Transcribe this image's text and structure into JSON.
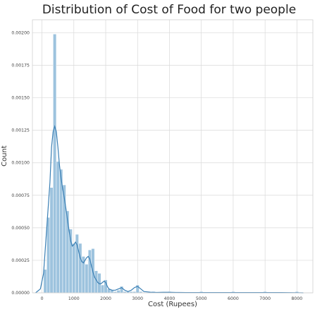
{
  "chart_data": {
    "type": "bar",
    "title": "Distribution of Cost of Food for two people",
    "xlabel": "Cost (Rupees)",
    "ylabel": "Count",
    "xlim": [
      -300,
      8500
    ],
    "ylim": [
      0,
      0.0021
    ],
    "x_ticks": [
      0,
      1000,
      2000,
      3000,
      4000,
      5000,
      6000,
      7000,
      8000
    ],
    "y_ticks": [
      0,
      0.00025,
      0.0005,
      0.00075,
      0.001,
      0.00125,
      0.0015,
      0.00175,
      0.002
    ],
    "x_tick_labels": [
      "0",
      "1000",
      "2000",
      "3000",
      "4000",
      "5000",
      "6000",
      "7000",
      "8000"
    ],
    "y_tick_labels": [
      "0.00000",
      "0.00025",
      "0.00050",
      "0.00075",
      "0.00100",
      "0.00125",
      "0.00150",
      "0.00175",
      "0.00200"
    ],
    "grid": true,
    "bin_width": 100,
    "bins": [
      {
        "x0": 50,
        "value": 0.00018
      },
      {
        "x0": 150,
        "value": 0.00058
      },
      {
        "x0": 250,
        "value": 0.00081
      },
      {
        "x0": 350,
        "value": 0.00199
      },
      {
        "x0": 450,
        "value": 0.00101
      },
      {
        "x0": 550,
        "value": 0.00095
      },
      {
        "x0": 650,
        "value": 0.00083
      },
      {
        "x0": 750,
        "value": 0.00063
      },
      {
        "x0": 850,
        "value": 0.00049
      },
      {
        "x0": 950,
        "value": 0.00038
      },
      {
        "x0": 1050,
        "value": 0.00045
      },
      {
        "x0": 1150,
        "value": 0.00038
      },
      {
        "x0": 1250,
        "value": 0.00028
      },
      {
        "x0": 1350,
        "value": 0.00022
      },
      {
        "x0": 1450,
        "value": 0.00033
      },
      {
        "x0": 1550,
        "value": 0.00034
      },
      {
        "x0": 1650,
        "value": 0.00017
      },
      {
        "x0": 1750,
        "value": 0.00015
      },
      {
        "x0": 1850,
        "value": 6e-05
      },
      {
        "x0": 1950,
        "value": 0.0001
      },
      {
        "x0": 2050,
        "value": 3e-05
      },
      {
        "x0": 2150,
        "value": 2e-05
      },
      {
        "x0": 2250,
        "value": 1e-05
      },
      {
        "x0": 2350,
        "value": 2e-05
      },
      {
        "x0": 2450,
        "value": 5e-05
      },
      {
        "x0": 2550,
        "value": 1e-05
      },
      {
        "x0": 2650,
        "value": 1e-05
      },
      {
        "x0": 2750,
        "value": 1e-05
      },
      {
        "x0": 2850,
        "value": 1e-05
      },
      {
        "x0": 2950,
        "value": 6e-05
      },
      {
        "x0": 3050,
        "value": 1e-05
      },
      {
        "x0": 3450,
        "value": 1e-05
      },
      {
        "x0": 3950,
        "value": 1e-05
      },
      {
        "x0": 4950,
        "value": 1e-05
      },
      {
        "x0": 5950,
        "value": 1e-05
      },
      {
        "x0": 6950,
        "value": 1e-05
      },
      {
        "x0": 7950,
        "value": 1e-05
      }
    ],
    "kde": {
      "x": [
        -200,
        -50,
        50,
        150,
        250,
        300,
        350,
        400,
        450,
        500,
        550,
        600,
        650,
        700,
        750,
        800,
        850,
        900,
        950,
        1000,
        1050,
        1100,
        1150,
        1200,
        1250,
        1300,
        1350,
        1400,
        1450,
        1500,
        1550,
        1600,
        1650,
        1700,
        1750,
        1800,
        1850,
        1900,
        1950,
        2000,
        2050,
        2100,
        2200,
        2300,
        2400,
        2500,
        2600,
        2700,
        2800,
        2900,
        3000,
        3100,
        3200,
        3400,
        3600,
        3800,
        4000,
        4200,
        4500,
        5000,
        5500,
        6000,
        6500,
        7000,
        7500,
        8000,
        8200
      ],
      "y": [
        0,
        3e-05,
        0.00015,
        0.0005,
        0.00085,
        0.00112,
        0.00124,
        0.00128,
        0.00124,
        0.00112,
        0.00098,
        0.00088,
        0.0008,
        0.00073,
        0.00065,
        0.00056,
        0.00048,
        0.0004,
        0.00036,
        0.00037,
        0.00039,
        0.00037,
        0.00032,
        0.00027,
        0.00024,
        0.00023,
        0.00025,
        0.00027,
        0.00028,
        0.00026,
        0.00021,
        0.00016,
        0.00012,
        0.0001,
        8e-05,
        7e-05,
        7e-05,
        8e-05,
        9e-05,
        8e-05,
        5e-05,
        3e-05,
        2e-05,
        2e-05,
        3e-05,
        4e-05,
        2e-05,
        1e-05,
        2e-05,
        4e-05,
        5e-05,
        3e-05,
        1e-05,
        5e-06,
        3e-06,
        4e-06,
        4e-06,
        3e-06,
        2e-06,
        2e-06,
        2e-06,
        2e-06,
        2e-06,
        2e-06,
        2e-06,
        1e-06,
        0
      ]
    },
    "colors": {
      "bar_fill": "#9dc3de",
      "bar_stroke": "#ffffff",
      "kde_line": "#3a7fb4",
      "grid": "#d9d9d9",
      "axes_edge": "#d0d0d0",
      "background": "#ffffff"
    }
  }
}
